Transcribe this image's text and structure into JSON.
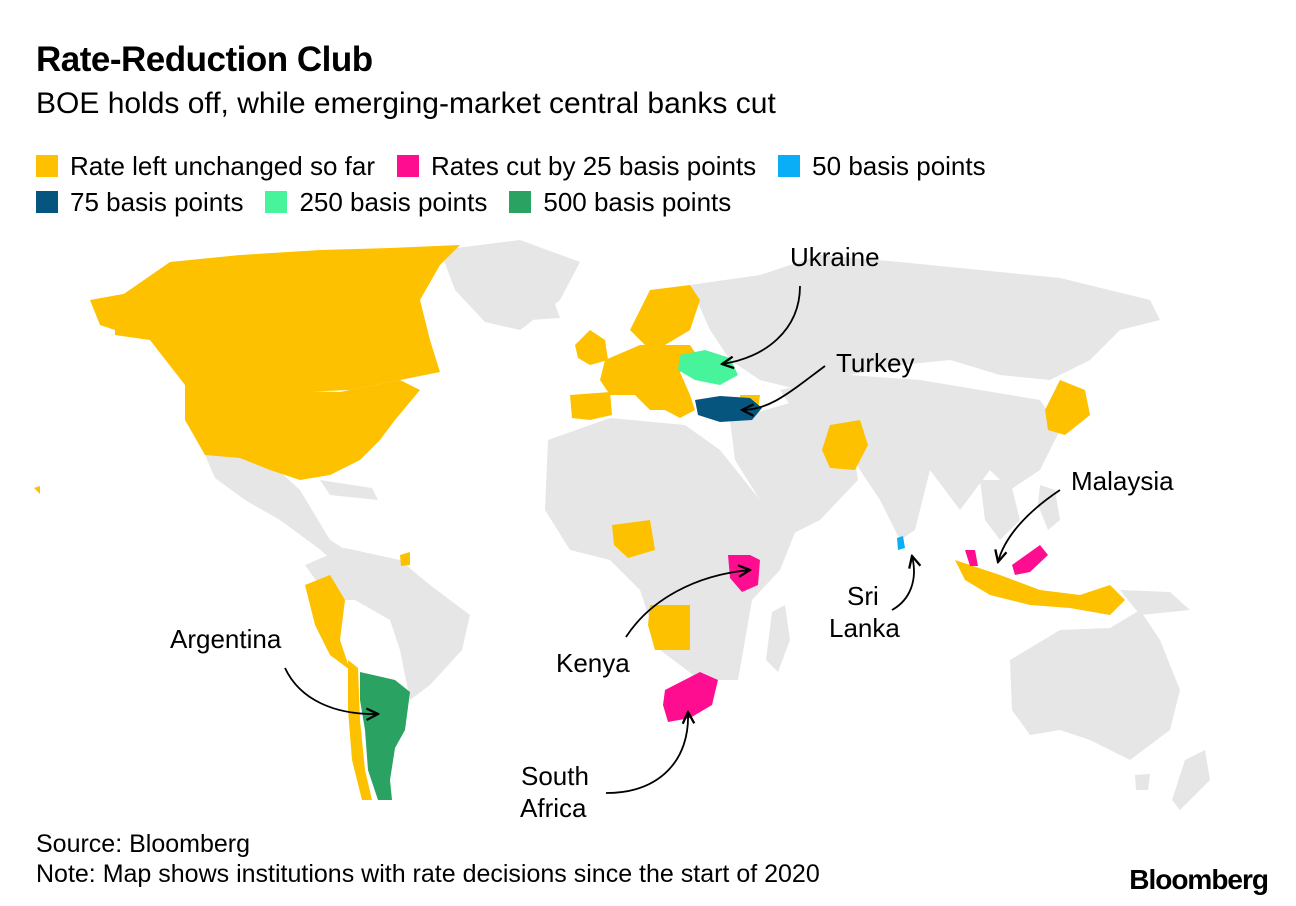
{
  "title": "Rate-Reduction Club",
  "subtitle": "BOE holds off, while emerging-market central banks cut",
  "colors": {
    "unchanged": "#FDC100",
    "cut25": "#FF0D91",
    "cut50": "#0AAEF6",
    "cut75": "#06557E",
    "cut250": "#48F49B",
    "cut500": "#2AA262",
    "land": "#E6E6E6"
  },
  "legend": [
    {
      "label": "Rate left unchanged so far",
      "color": "#FDC100"
    },
    {
      "label": "Rates cut by 25 basis points",
      "color": "#FF0D91"
    },
    {
      "label": "50 basis points",
      "color": "#0AAEF6"
    },
    {
      "label": "75 basis points",
      "color": "#06557E"
    },
    {
      "label": "250 basis points",
      "color": "#48F49B"
    },
    {
      "label": "500 basis points",
      "color": "#2AA262"
    }
  ],
  "callouts": {
    "ukraine": "Ukraine",
    "turkey": "Turkey",
    "malaysia": "Malaysia",
    "argentina": "Argentina",
    "kenya": "Kenya",
    "sri_lanka_line1": "Sri",
    "sri_lanka_line2": "Lanka",
    "south_africa_line1": "South",
    "south_africa_line2": "Africa"
  },
  "source": "Source: Bloomberg",
  "note": "Note: Map shows institutions with rate decisions since the start of 2020",
  "logo": "Bloomberg"
}
